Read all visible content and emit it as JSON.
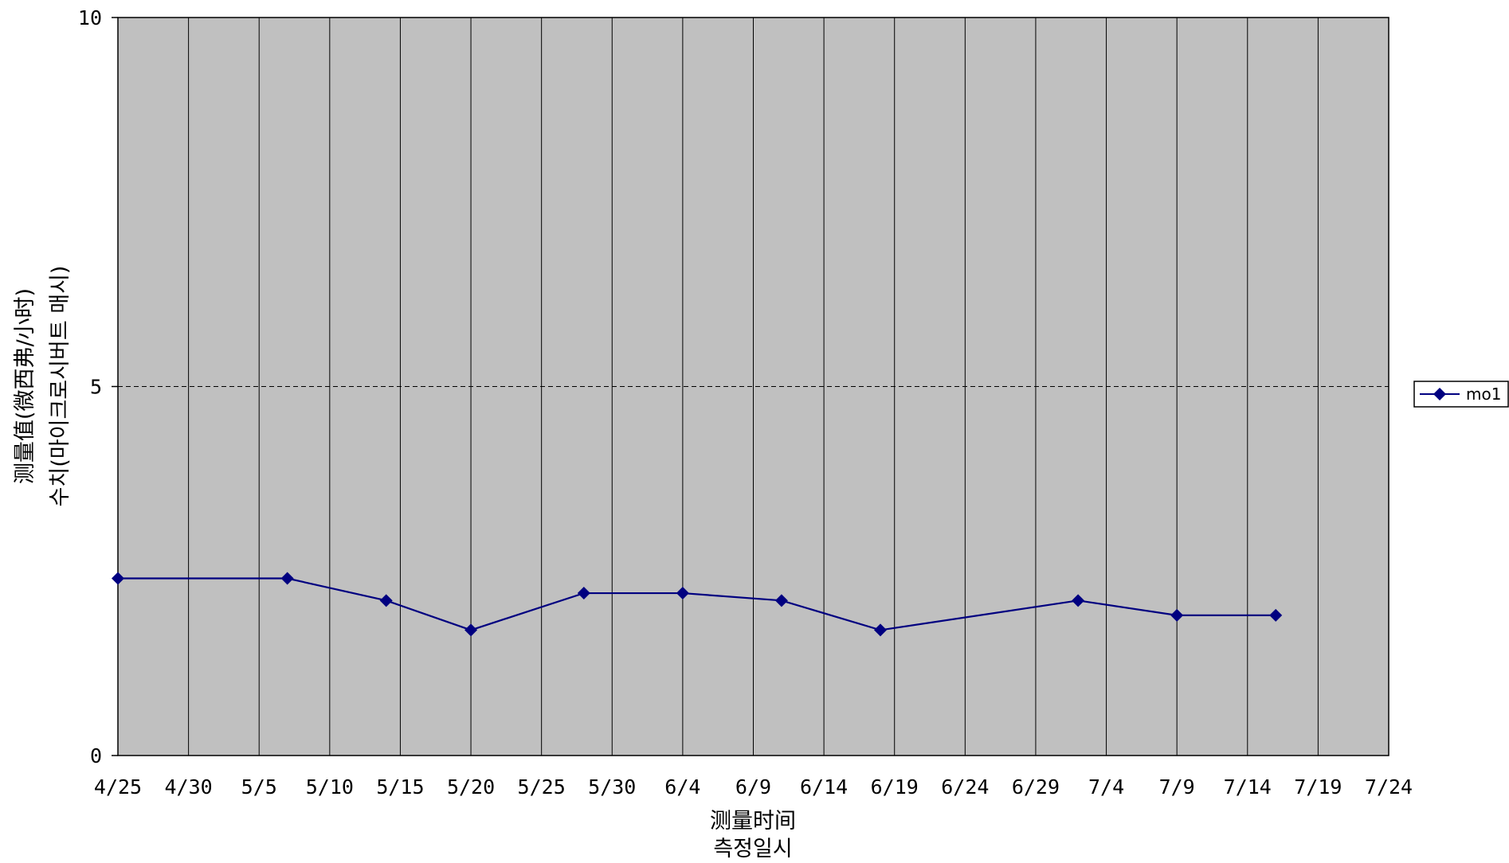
{
  "chart_data": {
    "type": "line",
    "x_tick_labels": [
      "4/25",
      "4/30",
      "5/5",
      "5/10",
      "5/15",
      "5/20",
      "5/25",
      "5/30",
      "6/4",
      "6/9",
      "6/14",
      "6/19",
      "6/24",
      "6/29",
      "7/4",
      "7/9",
      "7/14",
      "7/19",
      "7/24"
    ],
    "x_range": [
      "4/25",
      "7/24"
    ],
    "y_tick_labels": [
      "0",
      "5",
      "10"
    ],
    "ylim": [
      0,
      10
    ],
    "xlabel": [
      "测量时间",
      "측정일시"
    ],
    "ylabel": [
      "测量值(微西弗/小时)",
      "수치(마이크로시버트 매시)"
    ],
    "grid": {
      "vertical": true,
      "horizontal_dashed": true
    },
    "legend_position": "right",
    "plot_background": "#c0c0c0",
    "series": [
      {
        "name": "mo1",
        "color": "#000080",
        "marker": "diamond",
        "x": [
          "4/25",
          "5/7",
          "5/14",
          "5/20",
          "5/28",
          "6/4",
          "6/11",
          "6/18",
          "7/2",
          "7/9",
          "7/16"
        ],
        "y": [
          2.4,
          2.4,
          2.1,
          1.7,
          2.2,
          2.2,
          2.1,
          1.7,
          2.1,
          1.9,
          1.9
        ]
      }
    ]
  }
}
